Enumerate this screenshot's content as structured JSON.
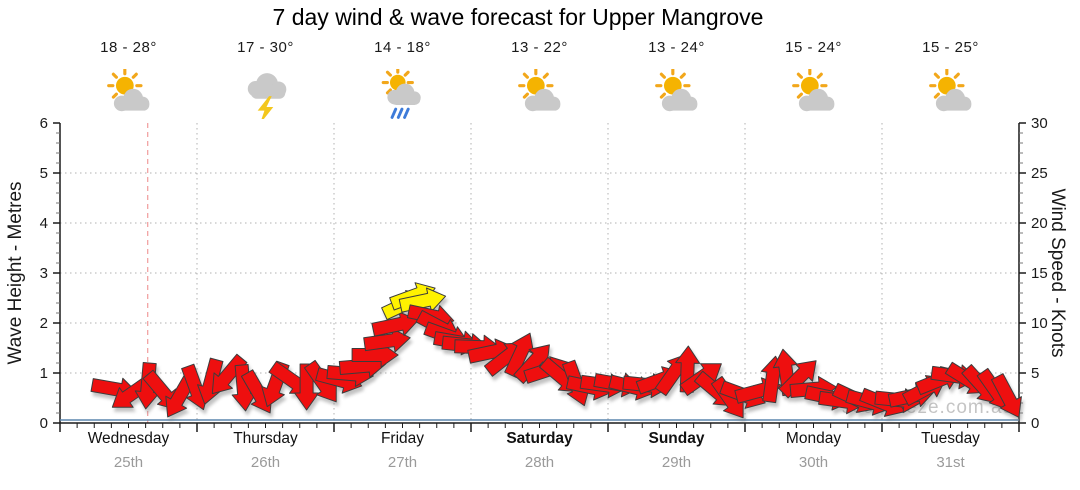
{
  "title": "7 day wind & wave forecast for Upper Mangrove",
  "watermark": "seabreeze.com.au",
  "days": [
    {
      "name": "Wednesday",
      "date": "25th",
      "temp_range": "18 - 28°",
      "icon": "partly-cloudy",
      "weekend_bold": false
    },
    {
      "name": "Thursday",
      "date": "26th",
      "temp_range": "17 - 30°",
      "icon": "thunderstorm",
      "weekend_bold": false
    },
    {
      "name": "Friday",
      "date": "27th",
      "temp_range": "14 - 18°",
      "icon": "sun-showers",
      "weekend_bold": false
    },
    {
      "name": "Saturday",
      "date": "28th",
      "temp_range": "13 - 22°",
      "icon": "partly-cloudy",
      "weekend_bold": true
    },
    {
      "name": "Sunday",
      "date": "29th",
      "temp_range": "13 - 24°",
      "icon": "partly-cloudy",
      "weekend_bold": true
    },
    {
      "name": "Monday",
      "date": "30th",
      "temp_range": "15 - 24°",
      "icon": "partly-cloudy",
      "weekend_bold": false
    },
    {
      "name": "Tuesday",
      "date": "31st",
      "temp_range": "15 - 25°",
      "icon": "partly-cloudy",
      "weekend_bold": false
    }
  ],
  "chart_data": {
    "type": "wind-arrow-timeseries-with-wave-line",
    "title": "7 day wind & wave forecast for Upper Mangrove",
    "left_axis": {
      "label": "Wave Height - Metres",
      "min": 0,
      "max": 6,
      "major_step": 1,
      "minor_step": 0.2,
      "ticks": [
        0,
        1,
        2,
        3,
        4,
        5,
        6
      ]
    },
    "right_axis": {
      "label": "Wind Speed - Knots",
      "min": 0,
      "max": 30,
      "major_step": 5,
      "minor_step": 1,
      "ticks": [
        0,
        5,
        10,
        15,
        20,
        25,
        30
      ]
    },
    "x_axis": {
      "categories": [
        "Wednesday",
        "Thursday",
        "Friday",
        "Saturday",
        "Sunday",
        "Monday",
        "Tuesday"
      ],
      "dates": [
        "25th",
        "26th",
        "27th",
        "28th",
        "29th",
        "30th",
        "31st"
      ],
      "minor_ticks_per_day": 8,
      "grid": "dotted vertical line at each day boundary, dotted horizontal line at each whole metre / 5 knots"
    },
    "now_marker": {
      "day_fraction": 0.64,
      "style": "dashed vertical line"
    },
    "wave_series_m": [
      [
        0.0,
        0.06
      ],
      [
        7.0,
        0.06
      ]
    ],
    "yellow_threshold_kn": 11.5,
    "wind_arrows_convention": "[day_fraction 0-7, speed_knots, direction_deg clockwise from screen-right]",
    "wind_arrows": [
      [
        0.4,
        3.4,
        10
      ],
      [
        0.52,
        2.9,
        145
      ],
      [
        0.64,
        3.7,
        95
      ],
      [
        0.75,
        3.1,
        50
      ],
      [
        0.87,
        2.6,
        120
      ],
      [
        0.99,
        3.5,
        70
      ],
      [
        1.1,
        4.1,
        105
      ],
      [
        1.22,
        4.7,
        130
      ],
      [
        1.34,
        3.5,
        85
      ],
      [
        1.45,
        3.0,
        60
      ],
      [
        1.57,
        3.8,
        110
      ],
      [
        1.69,
        4.3,
        35
      ],
      [
        1.8,
        3.6,
        90
      ],
      [
        1.92,
        4.0,
        55
      ],
      [
        2.04,
        4.3,
        15
      ],
      [
        2.12,
        4.9,
        5
      ],
      [
        2.21,
        5.7,
        -5
      ],
      [
        2.3,
        6.8,
        0
      ],
      [
        2.39,
        8.2,
        -8
      ],
      [
        2.45,
        9.8,
        -12
      ],
      [
        2.52,
        11.9,
        -25
      ],
      [
        2.58,
        12.7,
        -20
      ],
      [
        2.65,
        12.2,
        -12
      ],
      [
        2.71,
        10.7,
        12
      ],
      [
        2.77,
        9.6,
        28
      ],
      [
        2.83,
        8.7,
        20
      ],
      [
        2.9,
        8.1,
        10
      ],
      [
        2.96,
        7.8,
        6
      ],
      [
        3.05,
        7.6,
        2
      ],
      [
        3.15,
        7.1,
        -12
      ],
      [
        3.26,
        6.6,
        -38
      ],
      [
        3.36,
        6.9,
        -65
      ],
      [
        3.46,
        6.1,
        -48
      ],
      [
        3.56,
        5.3,
        -18
      ],
      [
        3.66,
        4.6,
        40
      ],
      [
        3.77,
        3.9,
        70
      ],
      [
        3.87,
        3.6,
        12
      ],
      [
        3.97,
        3.8,
        8
      ],
      [
        4.07,
        3.9,
        10
      ],
      [
        4.18,
        3.6,
        14
      ],
      [
        4.28,
        3.8,
        6
      ],
      [
        4.38,
        4.3,
        -20
      ],
      [
        4.48,
        5.0,
        -55
      ],
      [
        4.58,
        5.4,
        -88
      ],
      [
        4.69,
        4.6,
        -35
      ],
      [
        4.79,
        3.2,
        40
      ],
      [
        4.89,
        2.4,
        55
      ],
      [
        4.99,
        2.8,
        20
      ],
      [
        5.1,
        3.2,
        -15
      ],
      [
        5.2,
        4.4,
        -82
      ],
      [
        5.3,
        5.1,
        -98
      ],
      [
        5.4,
        4.6,
        -45
      ],
      [
        5.5,
        3.4,
        -5
      ],
      [
        5.61,
        2.6,
        12
      ],
      [
        5.71,
        2.2,
        8
      ],
      [
        5.81,
        2.4,
        25
      ],
      [
        5.91,
        2.1,
        15
      ],
      [
        6.01,
        2.0,
        22
      ],
      [
        6.12,
        2.3,
        6
      ],
      [
        6.22,
        2.7,
        -12
      ],
      [
        6.32,
        3.4,
        -28
      ],
      [
        6.42,
        4.3,
        -22
      ],
      [
        6.53,
        4.7,
        8
      ],
      [
        6.63,
        4.3,
        32
      ],
      [
        6.73,
        3.7,
        48
      ],
      [
        6.83,
        3.2,
        55
      ],
      [
        6.92,
        2.6,
        62
      ]
    ],
    "colors": {
      "arrow_red": "#ee0f0f",
      "arrow_yellow": "#fff200",
      "arrow_outline": "#3c3c3c",
      "grid": "#b0b0b0",
      "axis": "#1a1a1a",
      "now_marker": "#f2a3a3",
      "wave_line": "#5b86ad",
      "watermark": "#c5c5c5",
      "date_text": "#9a9a9a",
      "sun": "#f5b301",
      "sun_rays": "#f2a71b",
      "cloud": "#c9c9c9",
      "lightning": "#f3c71d",
      "rain": "#3d7bd9"
    }
  }
}
